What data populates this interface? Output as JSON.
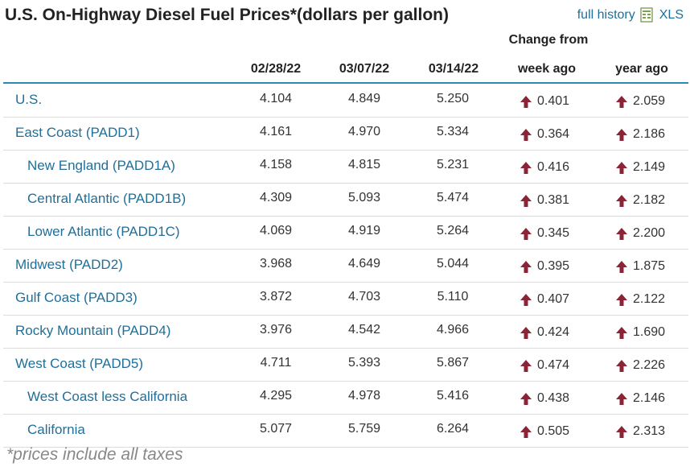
{
  "title": "U.S. On-Highway Diesel Fuel Prices*(dollars per gallon)",
  "links": {
    "full_history": "full history",
    "xls": "XLS"
  },
  "headers": {
    "change_from": "Change from",
    "dates": [
      "02/28/22",
      "03/07/22",
      "03/14/22"
    ],
    "week_ago": "week ago",
    "year_ago": "year ago"
  },
  "rows": [
    {
      "label": "U.S.",
      "v1": "4.104",
      "v2": "4.849",
      "v3": "5.250",
      "week": "0.401",
      "year": "2.059"
    },
    {
      "label": "East Coast (PADD1)",
      "v1": "4.161",
      "v2": "4.970",
      "v3": "5.334",
      "week": "0.364",
      "year": "2.186"
    },
    {
      "label": "New England (PADD1A)",
      "v1": "4.158",
      "v2": "4.815",
      "v3": "5.231",
      "week": "0.416",
      "year": "2.149"
    },
    {
      "label": "Central Atlantic (PADD1B)",
      "v1": "4.309",
      "v2": "5.093",
      "v3": "5.474",
      "week": "0.381",
      "year": "2.182"
    },
    {
      "label": "Lower Atlantic (PADD1C)",
      "v1": "4.069",
      "v2": "4.919",
      "v3": "5.264",
      "week": "0.345",
      "year": "2.200"
    },
    {
      "label": "Midwest (PADD2)",
      "v1": "3.968",
      "v2": "4.649",
      "v3": "5.044",
      "week": "0.395",
      "year": "1.875"
    },
    {
      "label": "Gulf Coast (PADD3)",
      "v1": "3.872",
      "v2": "4.703",
      "v3": "5.110",
      "week": "0.407",
      "year": "2.122"
    },
    {
      "label": "Rocky Mountain (PADD4)",
      "v1": "3.976",
      "v2": "4.542",
      "v3": "4.966",
      "week": "0.424",
      "year": "1.690"
    },
    {
      "label": "West Coast (PADD5)",
      "v1": "4.711",
      "v2": "5.393",
      "v3": "5.867",
      "week": "0.474",
      "year": "2.226"
    },
    {
      "label": "West Coast less California",
      "v1": "4.295",
      "v2": "4.978",
      "v3": "5.416",
      "week": "0.438",
      "year": "2.146"
    },
    {
      "label": "California",
      "v1": "5.077",
      "v2": "5.759",
      "v3": "6.264",
      "week": "0.505",
      "year": "2.313"
    }
  ],
  "footnote": "*prices include all taxes",
  "colors": {
    "link": "#1f6f9a",
    "rule": "#2a89b5",
    "arrow": "#8a2436"
  },
  "icons": {
    "change_arrow": "up-arrow-icon",
    "xls": "spreadsheet-icon"
  }
}
